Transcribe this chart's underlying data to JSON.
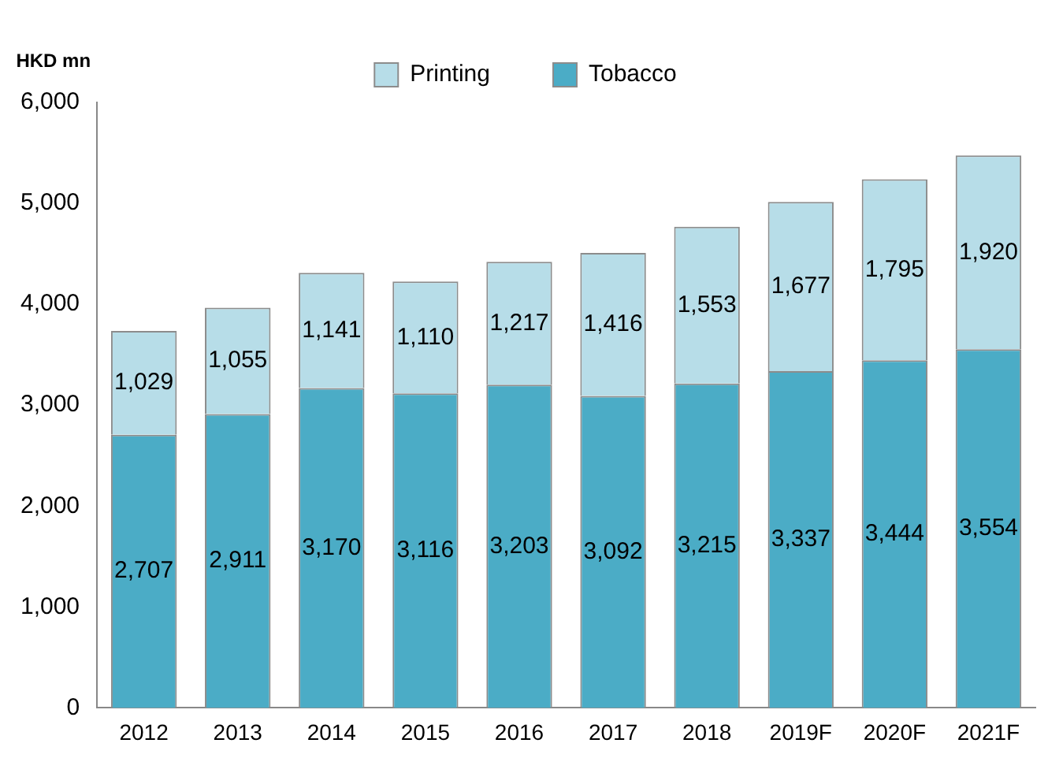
{
  "chart_data": {
    "type": "bar",
    "stacked": true,
    "ylabel": "HKD mn",
    "categories": [
      "2012",
      "2013",
      "2014",
      "2015",
      "2016",
      "2017",
      "2018",
      "2019F",
      "2020F",
      "2021F"
    ],
    "series": [
      {
        "name": "Tobacco",
        "color": "#4bacc6",
        "values": [
          2707,
          2911,
          3170,
          3116,
          3203,
          3092,
          3215,
          3337,
          3444,
          3554
        ],
        "value_labels": [
          "2,707",
          "2,911",
          "3,170",
          "3,116",
          "3,203",
          "3,092",
          "3,215",
          "3,337",
          "3,444",
          "3,554"
        ]
      },
      {
        "name": "Printing",
        "color": "#b7dde8",
        "values": [
          1029,
          1055,
          1141,
          1110,
          1217,
          1416,
          1553,
          1677,
          1795,
          1920
        ],
        "value_labels": [
          "1,029",
          "1,055",
          "1,141",
          "1,110",
          "1,217",
          "1,416",
          "1,553",
          "1,677",
          "1,795",
          "1,920"
        ]
      }
    ],
    "ylim": [
      0,
      6000
    ],
    "yticks": [
      {
        "value": 0,
        "label": "0"
      },
      {
        "value": 1000,
        "label": "1,000"
      },
      {
        "value": 2000,
        "label": "2,000"
      },
      {
        "value": 3000,
        "label": "3,000"
      },
      {
        "value": 4000,
        "label": "4,000"
      },
      {
        "value": 5000,
        "label": "5,000"
      },
      {
        "value": 6000,
        "label": "6,000"
      }
    ],
    "grid": false,
    "legend": "top"
  }
}
